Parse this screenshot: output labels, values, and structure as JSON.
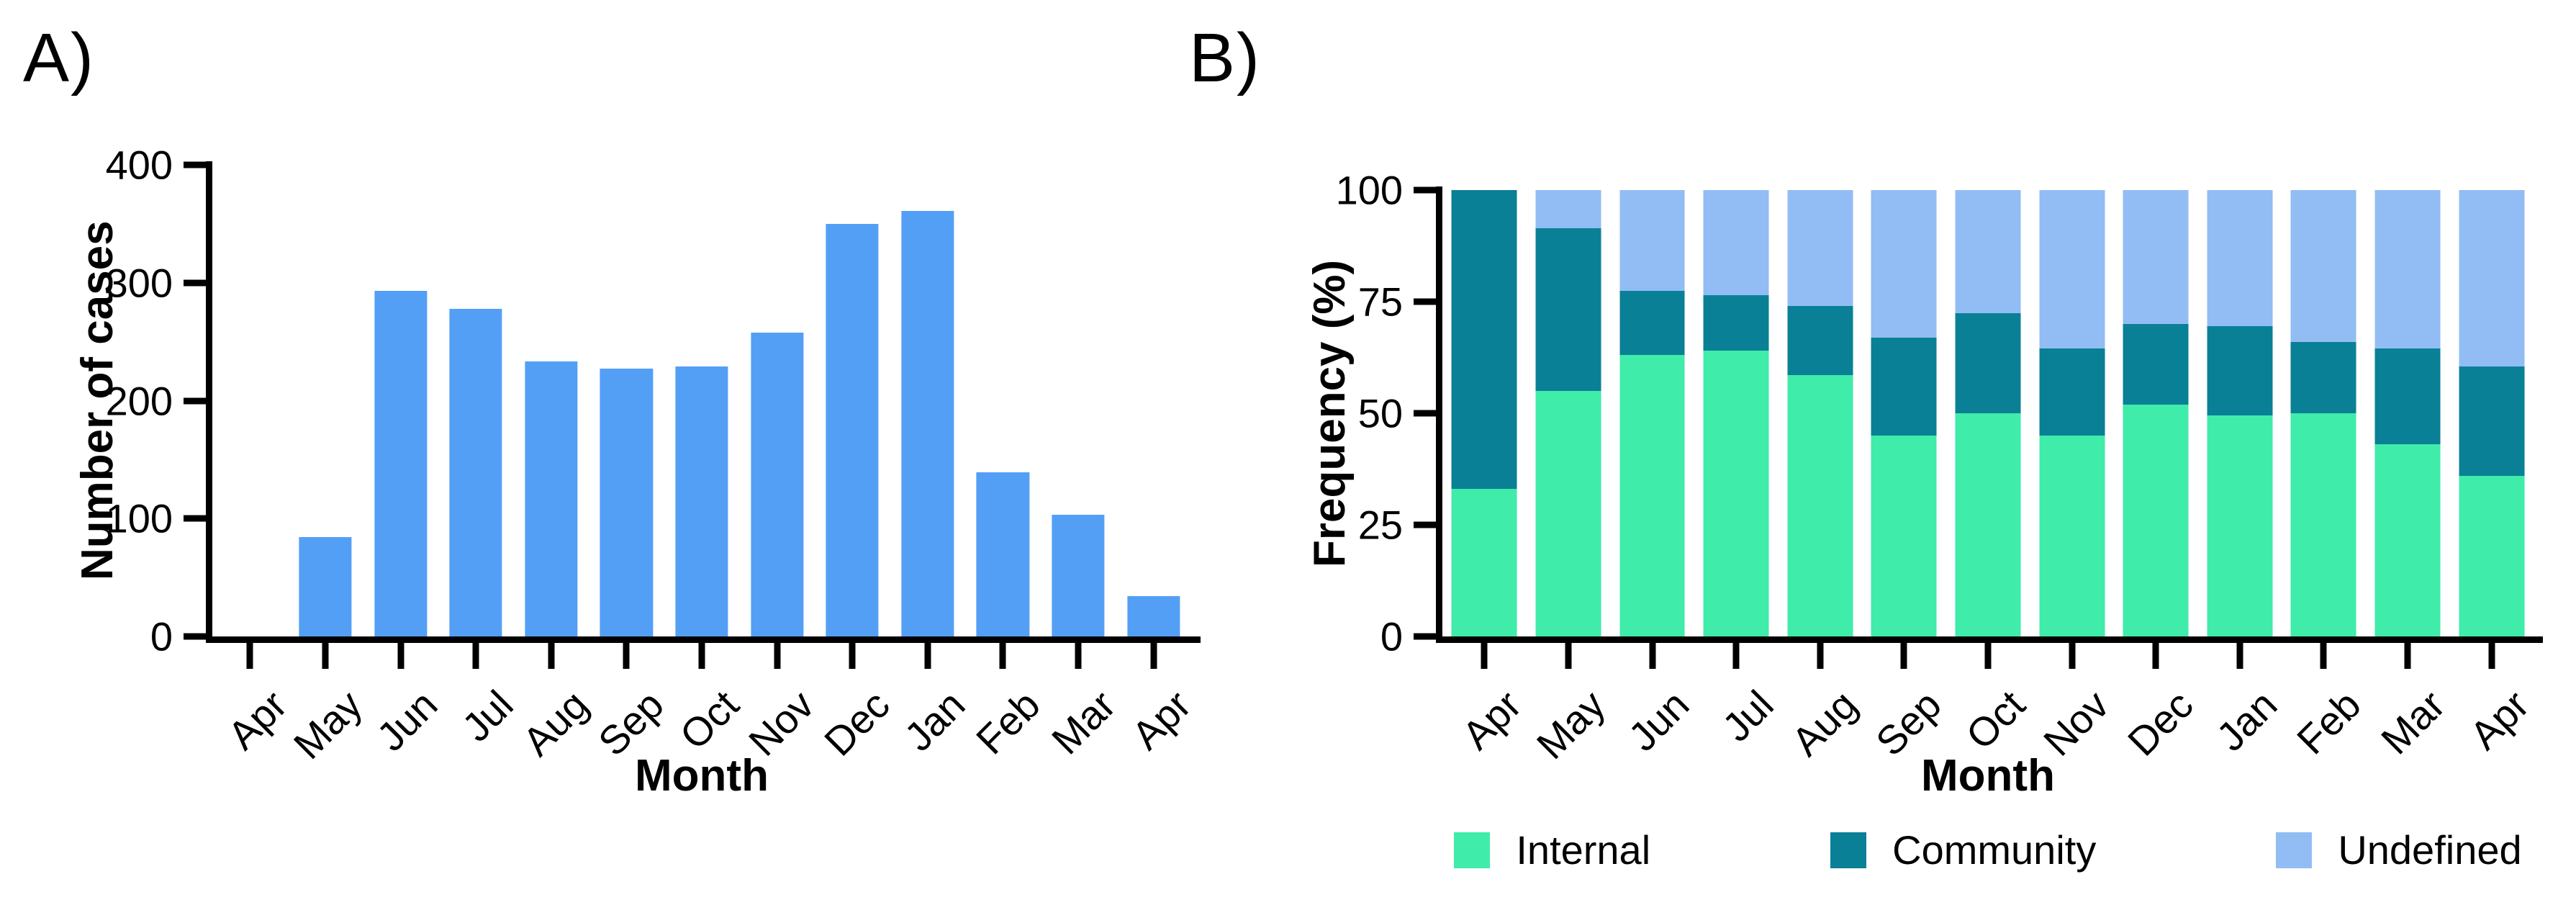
{
  "chart_data": [
    {
      "type": "bar",
      "panel_label": "A)",
      "y_axis": {
        "label": "Number of cases",
        "ticks": [
          0,
          100,
          200,
          300,
          400
        ],
        "max": 400
      },
      "x_axis": {
        "label": "Month",
        "categories": [
          "Apr",
          "May",
          "Jun",
          "Jul",
          "Aug",
          "Sep",
          "Oct",
          "Nov",
          "Dec",
          "Jan",
          "Feb",
          "Mar",
          "Apr"
        ]
      },
      "bar_color": "#549ff6",
      "values": [
        0,
        84,
        293,
        278,
        233,
        227,
        229,
        258,
        350,
        361,
        139,
        103,
        34
      ],
      "grid": "off",
      "ylim": [
        0,
        400
      ]
    },
    {
      "type": "stacked_bar",
      "panel_label": "B)",
      "y_axis": {
        "label": "Frequency (%)",
        "ticks": [
          0,
          25,
          50,
          75,
          100
        ],
        "max": 100
      },
      "x_axis": {
        "label": "Month",
        "categories": [
          "Apr",
          "May",
          "Jun",
          "Jul",
          "Aug",
          "Sep",
          "Oct",
          "Nov",
          "Dec",
          "Jan",
          "Feb",
          "Mar",
          "Apr"
        ]
      },
      "series": [
        {
          "name": "Internal",
          "color": "#3feca9",
          "values": [
            33,
            55,
            63,
            64,
            58.5,
            45,
            50,
            45,
            52,
            49.5,
            50,
            43,
            36
          ]
        },
        {
          "name": "Community",
          "color": "#0a8096",
          "values": [
            67,
            36.5,
            14.5,
            12.5,
            15.5,
            22,
            22.5,
            19.5,
            18,
            20,
            16,
            21.5,
            24.5
          ]
        },
        {
          "name": "Undefined",
          "color": "#92bdf4",
          "values": [
            0,
            8.5,
            22.5,
            23.5,
            26,
            33,
            27.5,
            35.5,
            30,
            30.5,
            34,
            35.5,
            39.5
          ]
        }
      ],
      "legend_position": "bottom",
      "grid": "off",
      "ylim": [
        0,
        100
      ]
    }
  ]
}
